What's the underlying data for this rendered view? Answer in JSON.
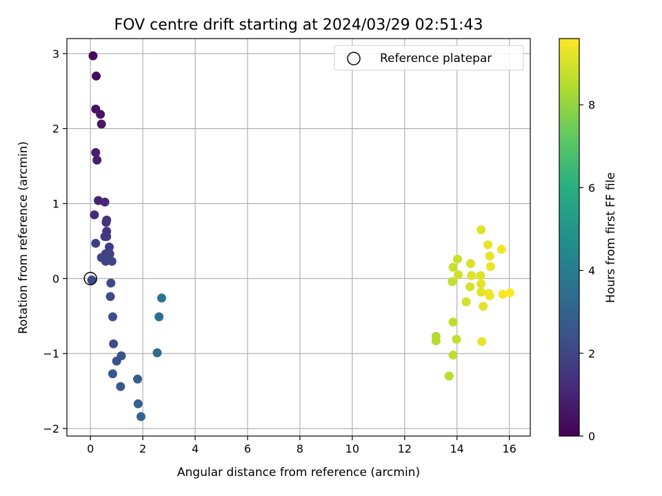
{
  "chart_data": {
    "type": "scatter",
    "title": "FOV centre drift starting at 2024/03/29 02:51:43",
    "xlabel": "Angular distance from reference (arcmin)",
    "ylabel": "Rotation from reference (arcmin)",
    "xlim": [
      -0.9,
      16.8
    ],
    "ylim": [
      -2.1,
      3.2
    ],
    "xticks": [
      0,
      2,
      4,
      6,
      8,
      10,
      12,
      14,
      16
    ],
    "yticks": [
      -2,
      -1,
      0,
      1,
      2,
      3
    ],
    "grid": true,
    "legend": {
      "placement": "top-right",
      "entries": [
        {
          "label": "Reference platepar",
          "marker": "open-circle"
        }
      ]
    },
    "reference_point": {
      "x": 0,
      "y": 0
    },
    "colorbar": {
      "label": "Hours from first FF file",
      "colormap": "viridis",
      "range": [
        0,
        9.6
      ],
      "ticks": [
        0,
        2,
        4,
        6,
        8
      ]
    },
    "points": [
      {
        "x": 0.1,
        "y": 2.97,
        "c": 0.2
      },
      {
        "x": 0.22,
        "y": 2.7,
        "c": 0.3
      },
      {
        "x": 0.2,
        "y": 2.26,
        "c": 0.45
      },
      {
        "x": 0.38,
        "y": 2.19,
        "c": 0.55
      },
      {
        "x": 0.42,
        "y": 2.06,
        "c": 0.65
      },
      {
        "x": 0.2,
        "y": 1.68,
        "c": 0.75
      },
      {
        "x": 0.25,
        "y": 1.58,
        "c": 0.85
      },
      {
        "x": 0.3,
        "y": 1.04,
        "c": 0.95
      },
      {
        "x": 0.55,
        "y": 1.02,
        "c": 1.05
      },
      {
        "x": 0.15,
        "y": 0.85,
        "c": 1.15
      },
      {
        "x": 0.6,
        "y": 0.75,
        "c": 1.3
      },
      {
        "x": 0.62,
        "y": 0.78,
        "c": 1.35
      },
      {
        "x": 0.62,
        "y": 0.63,
        "c": 1.45
      },
      {
        "x": 0.55,
        "y": 0.56,
        "c": 1.55
      },
      {
        "x": 0.62,
        "y": 0.56,
        "c": 1.6
      },
      {
        "x": 0.2,
        "y": 0.47,
        "c": 1.7
      },
      {
        "x": 0.72,
        "y": 0.42,
        "c": 1.75
      },
      {
        "x": 0.58,
        "y": 0.33,
        "c": 1.8
      },
      {
        "x": 0.74,
        "y": 0.33,
        "c": 1.85
      },
      {
        "x": 0.42,
        "y": 0.28,
        "c": 1.9
      },
      {
        "x": 0.58,
        "y": 0.23,
        "c": 1.95
      },
      {
        "x": 0.82,
        "y": 0.23,
        "c": 2.0
      },
      {
        "x": 0.05,
        "y": -0.02,
        "c": 2.05
      },
      {
        "x": 0.78,
        "y": -0.06,
        "c": 2.1
      },
      {
        "x": 0.76,
        "y": -0.24,
        "c": 2.2
      },
      {
        "x": 0.85,
        "y": -0.51,
        "c": 2.3
      },
      {
        "x": 0.88,
        "y": -0.87,
        "c": 2.35
      },
      {
        "x": 1.0,
        "y": -1.1,
        "c": 2.4
      },
      {
        "x": 1.18,
        "y": -1.03,
        "c": 2.5
      },
      {
        "x": 0.85,
        "y": -1.27,
        "c": 2.6
      },
      {
        "x": 1.15,
        "y": -1.44,
        "c": 2.7
      },
      {
        "x": 1.8,
        "y": -1.34,
        "c": 2.85
      },
      {
        "x": 1.82,
        "y": -1.67,
        "c": 3.0
      },
      {
        "x": 1.93,
        "y": -1.84,
        "c": 3.1
      },
      {
        "x": 2.55,
        "y": -0.99,
        "c": 3.3
      },
      {
        "x": 2.62,
        "y": -0.51,
        "c": 3.5
      },
      {
        "x": 2.72,
        "y": -0.26,
        "c": 3.65
      },
      {
        "x": 13.2,
        "y": -0.77,
        "c": 8.45
      },
      {
        "x": 13.2,
        "y": -0.83,
        "c": 8.5
      },
      {
        "x": 13.7,
        "y": -1.3,
        "c": 8.55
      },
      {
        "x": 13.85,
        "y": -1.02,
        "c": 8.6
      },
      {
        "x": 13.85,
        "y": -0.58,
        "c": 8.65
      },
      {
        "x": 13.98,
        "y": -0.81,
        "c": 8.7
      },
      {
        "x": 13.82,
        "y": -0.04,
        "c": 8.75
      },
      {
        "x": 13.85,
        "y": 0.15,
        "c": 8.8
      },
      {
        "x": 14.02,
        "y": 0.26,
        "c": 8.85
      },
      {
        "x": 14.05,
        "y": 0.05,
        "c": 8.9
      },
      {
        "x": 14.35,
        "y": -0.31,
        "c": 8.95
      },
      {
        "x": 14.5,
        "y": -0.11,
        "c": 9.0
      },
      {
        "x": 14.52,
        "y": 0.2,
        "c": 9.05
      },
      {
        "x": 14.55,
        "y": 0.04,
        "c": 9.1
      },
      {
        "x": 14.92,
        "y": 0.65,
        "c": 9.15
      },
      {
        "x": 14.9,
        "y": 0.04,
        "c": 9.15
      },
      {
        "x": 14.92,
        "y": -0.07,
        "c": 9.2
      },
      {
        "x": 14.92,
        "y": -0.18,
        "c": 9.2
      },
      {
        "x": 14.95,
        "y": -0.84,
        "c": 9.25
      },
      {
        "x": 15.0,
        "y": -0.37,
        "c": 9.25
      },
      {
        "x": 15.18,
        "y": 0.45,
        "c": 9.3
      },
      {
        "x": 15.25,
        "y": 0.3,
        "c": 9.3
      },
      {
        "x": 15.28,
        "y": 0.16,
        "c": 9.35
      },
      {
        "x": 15.22,
        "y": -0.2,
        "c": 9.35
      },
      {
        "x": 15.25,
        "y": -0.23,
        "c": 9.4
      },
      {
        "x": 15.7,
        "y": 0.39,
        "c": 9.45
      },
      {
        "x": 15.75,
        "y": -0.21,
        "c": 9.5
      },
      {
        "x": 16.02,
        "y": -0.19,
        "c": 9.6
      }
    ]
  }
}
